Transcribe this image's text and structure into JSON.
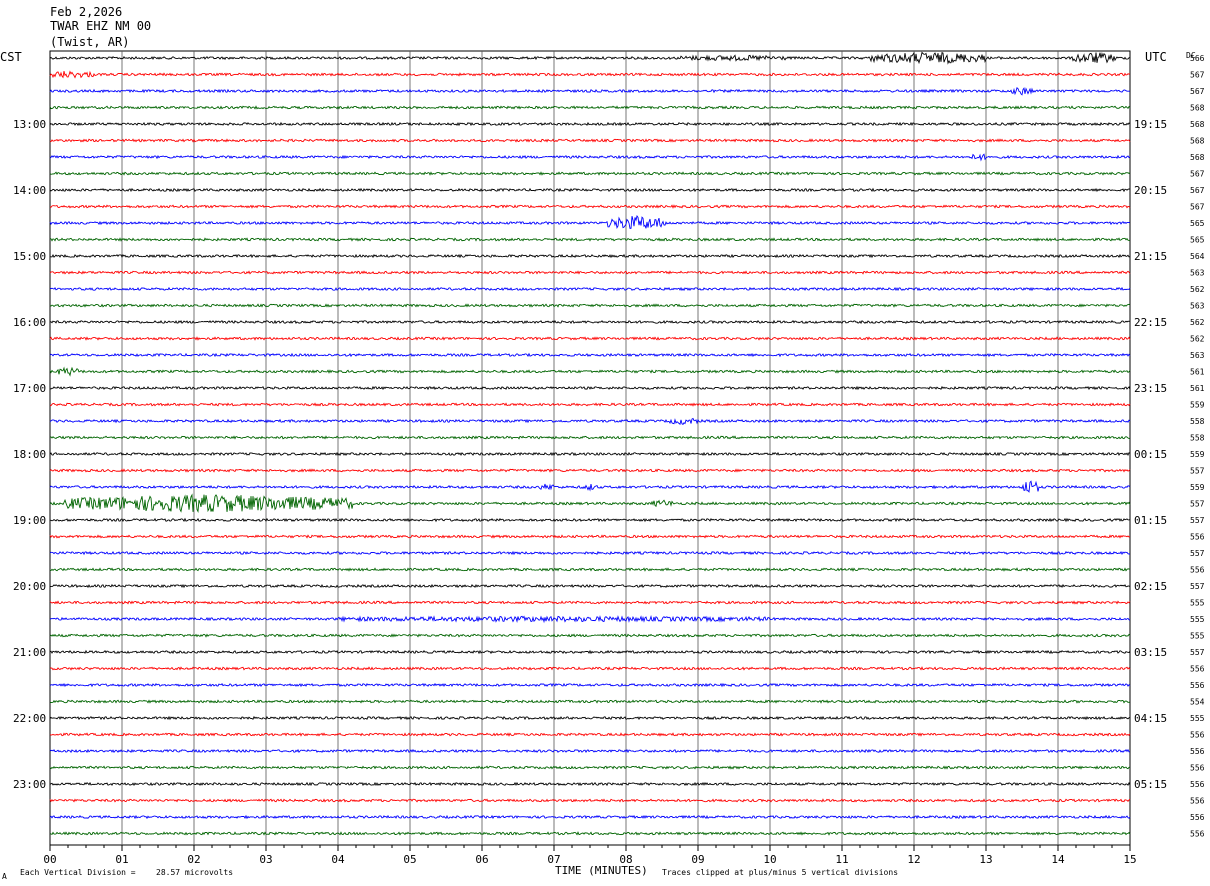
{
  "header": {
    "date": "Feb 2,2026",
    "station": "TWAR EHZ NM 00",
    "location": "(Twist, AR)"
  },
  "left_tz": "CST",
  "right_tz": "UTC",
  "dc_label": "DC",
  "footer": {
    "scale_label": "Each Vertical Division =",
    "scale_value": "28.57 microvolts",
    "clip_note": "Traces clipped at plus/minus 5 vertical divisions",
    "corner_mark": "A"
  },
  "chart_data": {
    "type": "line",
    "title": "TWAR EHZ NM 00",
    "xlabel": "TIME (MINUTES)",
    "ylabel": "",
    "xlim": [
      0,
      15
    ],
    "x_ticks": [
      "00",
      "01",
      "02",
      "03",
      "04",
      "05",
      "06",
      "07",
      "08",
      "09",
      "10",
      "11",
      "12",
      "13",
      "14",
      "15"
    ],
    "trace_colors": [
      "#000000",
      "#ff0000",
      "#0000ff",
      "#006400"
    ],
    "traces_per_hour": 4,
    "minutes_per_trace": 15,
    "hour_labels_left": [
      "13:00",
      "14:00",
      "15:00",
      "16:00",
      "17:00",
      "18:00",
      "19:00",
      "20:00",
      "21:00",
      "22:00",
      "23:00"
    ],
    "hour_labels_right": [
      "19:15",
      "20:15",
      "21:15",
      "22:15",
      "23:15",
      "00:15",
      "01:15",
      "02:15",
      "03:15",
      "04:15",
      "05:15"
    ],
    "dc_offsets": [
      566,
      567,
      567,
      568,
      568,
      568,
      568,
      567,
      567,
      567,
      565,
      565,
      564,
      563,
      562,
      563,
      562,
      562,
      563,
      561,
      561,
      559,
      558,
      558,
      559,
      557,
      559,
      557,
      557,
      556,
      557,
      556,
      557,
      555,
      555,
      555,
      557,
      556,
      556,
      554,
      555,
      556,
      556,
      556,
      556,
      556,
      556,
      556
    ],
    "events": [
      {
        "trace": 0,
        "minute": 12.2,
        "amplitude": 3.0,
        "duration": 1.6
      },
      {
        "trace": 0,
        "minute": 14.5,
        "amplitude": 3.0,
        "duration": 0.6
      },
      {
        "trace": 0,
        "minute": 9.5,
        "amplitude": 1.0,
        "duration": 1.5
      },
      {
        "trace": 1,
        "minute": 0.2,
        "amplitude": 1.6,
        "duration": 0.8
      },
      {
        "trace": 2,
        "minute": 13.5,
        "amplitude": 1.8,
        "duration": 0.3
      },
      {
        "trace": 6,
        "minute": 12.9,
        "amplitude": 1.5,
        "duration": 0.2
      },
      {
        "trace": 10,
        "minute": 8.15,
        "amplitude": 4.0,
        "duration": 0.8
      },
      {
        "trace": 19,
        "minute": 0.25,
        "amplitude": 2.0,
        "duration": 0.3
      },
      {
        "trace": 22,
        "minute": 8.8,
        "amplitude": 1.5,
        "duration": 0.4
      },
      {
        "trace": 26,
        "minute": 13.6,
        "amplitude": 4.0,
        "duration": 0.25
      },
      {
        "trace": 26,
        "minute": 6.9,
        "amplitude": 1.4,
        "duration": 0.2
      },
      {
        "trace": 26,
        "minute": 7.5,
        "amplitude": 1.4,
        "duration": 0.2
      },
      {
        "trace": 27,
        "minute": 2.2,
        "amplitude": 5.0,
        "duration": 4.0
      },
      {
        "trace": 27,
        "minute": 8.5,
        "amplitude": 1.6,
        "duration": 0.3
      },
      {
        "trace": 34,
        "minute": 7.0,
        "amplitude": 1.0,
        "duration": 6.0
      }
    ]
  }
}
